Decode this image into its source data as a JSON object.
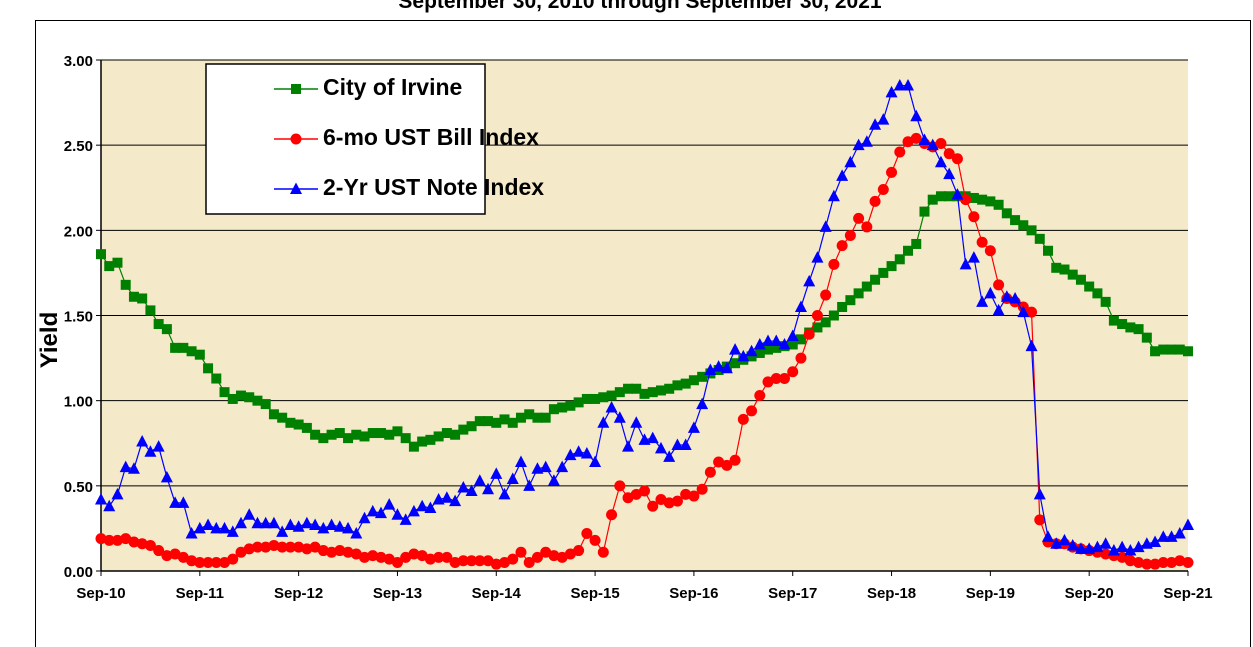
{
  "chart_data": {
    "type": "line",
    "title": "September 30, 2010 through September 30, 2021",
    "y_label": "Yield",
    "categories": [
      "Sep-10",
      null,
      null,
      null,
      null,
      null,
      null,
      null,
      null,
      null,
      null,
      null,
      "Sep-11",
      null,
      null,
      null,
      null,
      null,
      null,
      null,
      null,
      null,
      null,
      null,
      "Sep-12",
      null,
      null,
      null,
      null,
      null,
      null,
      null,
      null,
      null,
      null,
      null,
      "Sep-13",
      null,
      null,
      null,
      null,
      null,
      null,
      null,
      null,
      null,
      null,
      null,
      "Sep-14",
      null,
      null,
      null,
      null,
      null,
      null,
      null,
      null,
      null,
      null,
      null,
      "Sep-15",
      null,
      null,
      null,
      null,
      null,
      null,
      null,
      null,
      null,
      null,
      null,
      "Sep-16",
      null,
      null,
      null,
      null,
      null,
      null,
      null,
      null,
      null,
      null,
      null,
      "Sep-17",
      null,
      null,
      null,
      null,
      null,
      null,
      null,
      null,
      null,
      null,
      null,
      "Sep-18",
      null,
      null,
      null,
      null,
      null,
      null,
      null,
      null,
      null,
      null,
      null,
      "Sep-19",
      null,
      null,
      null,
      null,
      null,
      null,
      null,
      null,
      null,
      null,
      null,
      "Sep-20",
      null,
      null,
      null,
      null,
      null,
      null,
      null,
      null,
      null,
      null,
      null,
      "Sep-21"
    ],
    "series": [
      {
        "name": "City of Irvine",
        "color": "#008000",
        "marker": "square",
        "values": [
          1.86,
          1.79,
          1.81,
          1.68,
          1.61,
          1.6,
          1.53,
          1.45,
          1.42,
          1.31,
          1.31,
          1.29,
          1.27,
          1.19,
          1.13,
          1.05,
          1.01,
          1.03,
          1.02,
          1.0,
          0.98,
          0.92,
          0.9,
          0.87,
          0.86,
          0.84,
          0.8,
          0.78,
          0.8,
          0.81,
          0.78,
          0.8,
          0.79,
          0.81,
          0.81,
          0.8,
          0.82,
          0.78,
          0.73,
          0.76,
          0.77,
          0.79,
          0.81,
          0.8,
          0.83,
          0.85,
          0.88,
          0.88,
          0.87,
          0.89,
          0.87,
          0.9,
          0.92,
          0.9,
          0.9,
          0.95,
          0.96,
          0.97,
          0.99,
          1.01,
          1.01,
          1.02,
          1.03,
          1.05,
          1.07,
          1.07,
          1.04,
          1.05,
          1.06,
          1.07,
          1.09,
          1.1,
          1.12,
          1.14,
          1.16,
          1.18,
          1.2,
          1.22,
          1.24,
          1.26,
          1.28,
          1.3,
          1.31,
          1.32,
          1.33,
          1.36,
          1.4,
          1.43,
          1.46,
          1.5,
          1.55,
          1.59,
          1.63,
          1.67,
          1.71,
          1.75,
          1.79,
          1.83,
          1.88,
          1.92,
          2.11,
          2.18,
          2.2,
          2.2,
          2.2,
          2.2,
          2.19,
          2.18,
          2.17,
          2.15,
          2.1,
          2.06,
          2.03,
          2.0,
          1.95,
          1.88,
          1.78,
          1.77,
          1.74,
          1.71,
          1.67,
          1.63,
          1.58,
          1.47,
          1.45,
          1.43,
          1.42,
          1.37,
          1.29,
          1.3,
          1.3,
          1.3,
          1.29
        ]
      },
      {
        "name": "6-mo UST Bill Index",
        "color": "#ff0000",
        "marker": "circle",
        "values": [
          0.19,
          0.18,
          0.18,
          0.19,
          0.17,
          0.16,
          0.15,
          0.12,
          0.09,
          0.1,
          0.08,
          0.06,
          0.05,
          0.05,
          0.05,
          0.05,
          0.07,
          0.11,
          0.13,
          0.14,
          0.14,
          0.15,
          0.14,
          0.14,
          0.14,
          0.13,
          0.14,
          0.12,
          0.11,
          0.12,
          0.11,
          0.1,
          0.08,
          0.09,
          0.08,
          0.07,
          0.05,
          0.08,
          0.1,
          0.09,
          0.07,
          0.08,
          0.08,
          0.05,
          0.06,
          0.06,
          0.06,
          0.06,
          0.04,
          0.05,
          0.07,
          0.11,
          0.05,
          0.08,
          0.11,
          0.09,
          0.08,
          0.1,
          0.12,
          0.22,
          0.18,
          0.11,
          0.33,
          0.5,
          0.43,
          0.45,
          0.47,
          0.38,
          0.42,
          0.4,
          0.41,
          0.45,
          0.44,
          0.48,
          0.58,
          0.64,
          0.62,
          0.65,
          0.89,
          0.94,
          1.03,
          1.11,
          1.13,
          1.13,
          1.17,
          1.25,
          1.39,
          1.5,
          1.62,
          1.8,
          1.91,
          1.97,
          2.07,
          2.02,
          2.17,
          2.24,
          2.34,
          2.46,
          2.52,
          2.54,
          2.51,
          2.49,
          2.51,
          2.45,
          2.42,
          2.18,
          2.08,
          1.93,
          1.88,
          1.68,
          1.6,
          1.58,
          1.55,
          1.52,
          0.3,
          0.17,
          0.16,
          0.16,
          0.14,
          0.13,
          0.12,
          0.11,
          0.1,
          0.09,
          0.08,
          0.06,
          0.05,
          0.04,
          0.04,
          0.05,
          0.05,
          0.06,
          0.05
        ]
      },
      {
        "name": "2-Yr UST Note Index",
        "color": "#0000ff",
        "marker": "triangle",
        "values": [
          0.42,
          0.38,
          0.45,
          0.61,
          0.6,
          0.76,
          0.7,
          0.73,
          0.55,
          0.4,
          0.4,
          0.22,
          0.25,
          0.27,
          0.25,
          0.25,
          0.23,
          0.28,
          0.33,
          0.28,
          0.28,
          0.28,
          0.23,
          0.27,
          0.26,
          0.28,
          0.27,
          0.25,
          0.27,
          0.26,
          0.25,
          0.22,
          0.31,
          0.35,
          0.34,
          0.39,
          0.33,
          0.3,
          0.35,
          0.38,
          0.37,
          0.42,
          0.43,
          0.41,
          0.49,
          0.47,
          0.53,
          0.48,
          0.57,
          0.45,
          0.54,
          0.64,
          0.5,
          0.6,
          0.61,
          0.53,
          0.61,
          0.68,
          0.7,
          0.69,
          0.64,
          0.87,
          0.96,
          0.9,
          0.73,
          0.87,
          0.77,
          0.78,
          0.72,
          0.67,
          0.74,
          0.74,
          0.84,
          0.98,
          1.18,
          1.2,
          1.19,
          1.3,
          1.26,
          1.29,
          1.33,
          1.35,
          1.35,
          1.33,
          1.38,
          1.55,
          1.7,
          1.84,
          2.02,
          2.2,
          2.32,
          2.4,
          2.5,
          2.52,
          2.62,
          2.65,
          2.81,
          2.85,
          2.85,
          2.67,
          2.53,
          2.5,
          2.4,
          2.33,
          2.21,
          1.8,
          1.84,
          1.58,
          1.63,
          1.53,
          1.61,
          1.6,
          1.52,
          1.32,
          0.45,
          0.2,
          0.16,
          0.18,
          0.15,
          0.13,
          0.13,
          0.14,
          0.16,
          0.12,
          0.14,
          0.12,
          0.14,
          0.16,
          0.17,
          0.2,
          0.2,
          0.22,
          0.27
        ]
      }
    ],
    "ylim": [
      0,
      3
    ],
    "yticks": [
      {
        "value": 0,
        "label": "0.00"
      },
      {
        "value": 0.5,
        "label": "0.50"
      },
      {
        "value": 1,
        "label": "1.00"
      },
      {
        "value": 1.5,
        "label": "1.50"
      },
      {
        "value": 2,
        "label": "2.00"
      },
      {
        "value": 2.5,
        "label": "2.50"
      },
      {
        "value": 3,
        "label": "3.00"
      }
    ],
    "grid": true,
    "legend": "upper left"
  }
}
